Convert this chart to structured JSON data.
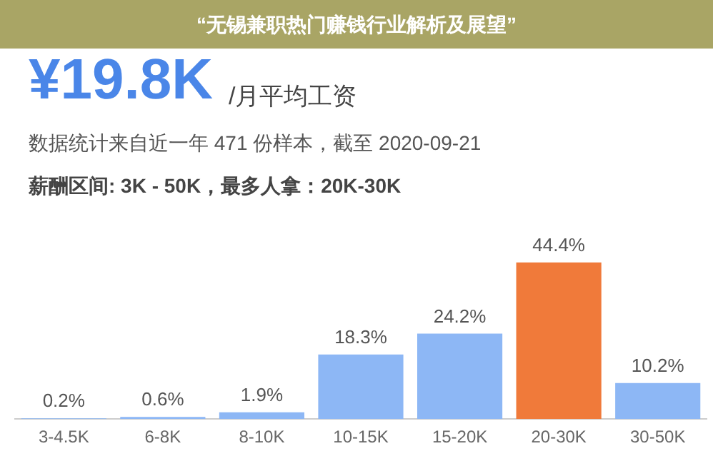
{
  "chart_data": {
    "type": "bar",
    "title": "“无锡兼职热门赚钱行业解析及展望”",
    "annotations": [
      "¥19.8K",
      "/月平均工资",
      "数据统计来自近一年 471 份样本，截至 2020-09-21",
      "薪酬区间: 3K - 50K，最多人拿：20K-30K"
    ],
    "categories": [
      "3-4.5K",
      "6-8K",
      "8-10K",
      "10-15K",
      "15-20K",
      "20-30K",
      "30-50K"
    ],
    "values": [
      0.2,
      0.6,
      1.9,
      18.3,
      24.2,
      44.4,
      10.2
    ],
    "colors": [
      "#8db7f5",
      "#8db7f5",
      "#8db7f5",
      "#8db7f5",
      "#8db7f5",
      "#f07a3a",
      "#8db7f5"
    ],
    "value_labels": [
      "0.2%",
      "0.6%",
      "1.9%",
      "18.3%",
      "24.2%",
      "44.4%",
      "10.2%"
    ],
    "grid": false,
    "legend": false
  }
}
